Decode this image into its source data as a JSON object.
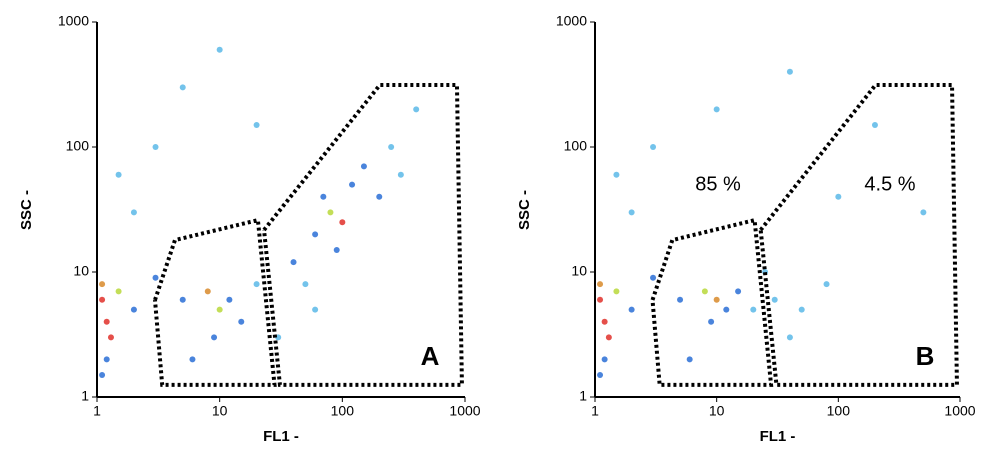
{
  "chart_data": [
    {
      "type": "scatter",
      "panel_label": "A",
      "x_label": "FL1 -",
      "y_label": "SSC -",
      "xscale": "log",
      "yscale": "log",
      "xlim": [
        1,
        1000
      ],
      "ylim": [
        1,
        1000
      ],
      "xticks": [
        1,
        10,
        100,
        1000
      ],
      "yticks": [
        1,
        10,
        100,
        1000
      ],
      "x": [
        1.1,
        1.2,
        1.1,
        1.3,
        1.5,
        2,
        3,
        5,
        8,
        10,
        12,
        15,
        9,
        6,
        20,
        40,
        60,
        80,
        100,
        120,
        150,
        200,
        90,
        70,
        250,
        300,
        50,
        2,
        3,
        5,
        1.5,
        20,
        10,
        400,
        30,
        60,
        1.2,
        1.1
      ],
      "values": [
        6,
        4,
        8,
        3,
        7,
        5,
        9,
        6,
        7,
        5,
        6,
        4,
        3,
        2,
        8,
        12,
        20,
        30,
        25,
        50,
        70,
        40,
        15,
        40,
        100,
        60,
        8,
        30,
        100,
        300,
        60,
        150,
        600,
        200,
        3,
        5,
        2,
        1.5
      ],
      "colors": [
        "#e0302a",
        "#e0302a",
        "#d88a2a",
        "#e0302a",
        "#b8d83a",
        "#2a6fd6",
        "#2a6fd6",
        "#2a6fd6",
        "#d88a2a",
        "#b8d83a",
        "#2a6fd6",
        "#2a6fd6",
        "#2a6fd6",
        "#2a6fd6",
        "#5bb8e8",
        "#2a6fd6",
        "#2a6fd6",
        "#b8d83a",
        "#e0302a",
        "#2a6fd6",
        "#2a6fd6",
        "#2a6fd6",
        "#2a6fd6",
        "#2a6fd6",
        "#5bb8e8",
        "#5bb8e8",
        "#5bb8e8",
        "#5bb8e8",
        "#5bb8e8",
        "#5bb8e8",
        "#5bb8e8",
        "#5bb8e8",
        "#5bb8e8",
        "#5bb8e8",
        "#5bb8e8",
        "#5bb8e8",
        "#2a6fd6",
        "#2a6fd6"
      ],
      "gates": [
        {
          "x": [
            2.97,
            4.32,
            20.5,
            28,
            3.4,
            2.97
          ],
          "y": [
            5.97,
            18,
            26,
            1.25,
            1.25,
            5.97
          ]
        },
        {
          "x": [
            23,
            202,
            860,
            944,
            31,
            23
          ],
          "y": [
            21.7,
            313,
            313,
            1.25,
            1.25,
            21.7
          ]
        }
      ]
    },
    {
      "type": "scatter",
      "panel_label": "B",
      "x_label": "FL1 -",
      "y_label": "SSC -",
      "annotations": [
        "85 %",
        "4.5 %"
      ],
      "xscale": "log",
      "yscale": "log",
      "xlim": [
        1,
        1000
      ],
      "ylim": [
        1,
        1000
      ],
      "xticks": [
        1,
        10,
        100,
        1000
      ],
      "yticks": [
        1,
        10,
        100,
        1000
      ],
      "x": [
        1.1,
        1.2,
        1.1,
        1.3,
        1.5,
        2,
        3,
        5,
        8,
        10,
        12,
        9,
        15,
        6,
        20,
        30,
        50,
        40,
        80,
        2,
        3,
        1.5,
        10,
        40,
        200,
        500,
        100,
        1.2,
        1.1,
        25
      ],
      "values": [
        6,
        4,
        8,
        3,
        7,
        5,
        9,
        6,
        7,
        6,
        5,
        4,
        7,
        2,
        5,
        6,
        5,
        3,
        8,
        30,
        100,
        60,
        200,
        400,
        150,
        30,
        40,
        2,
        1.5,
        10
      ],
      "colors": [
        "#e0302a",
        "#e0302a",
        "#d88a2a",
        "#e0302a",
        "#b8d83a",
        "#2a6fd6",
        "#2a6fd6",
        "#2a6fd6",
        "#b8d83a",
        "#d88a2a",
        "#2a6fd6",
        "#2a6fd6",
        "#2a6fd6",
        "#2a6fd6",
        "#5bb8e8",
        "#5bb8e8",
        "#5bb8e8",
        "#5bb8e8",
        "#5bb8e8",
        "#5bb8e8",
        "#5bb8e8",
        "#5bb8e8",
        "#5bb8e8",
        "#5bb8e8",
        "#5bb8e8",
        "#5bb8e8",
        "#5bb8e8",
        "#2a6fd6",
        "#2a6fd6",
        "#5bb8e8"
      ],
      "gates": [
        {
          "x": [
            2.97,
            4.32,
            20.5,
            28,
            3.4,
            2.97
          ],
          "y": [
            5.97,
            18,
            26,
            1.25,
            1.25,
            5.97
          ]
        },
        {
          "x": [
            23,
            202,
            860,
            944,
            31,
            23
          ],
          "y": [
            21.7,
            313,
            313,
            1.25,
            1.25,
            21.7
          ]
        }
      ]
    }
  ]
}
